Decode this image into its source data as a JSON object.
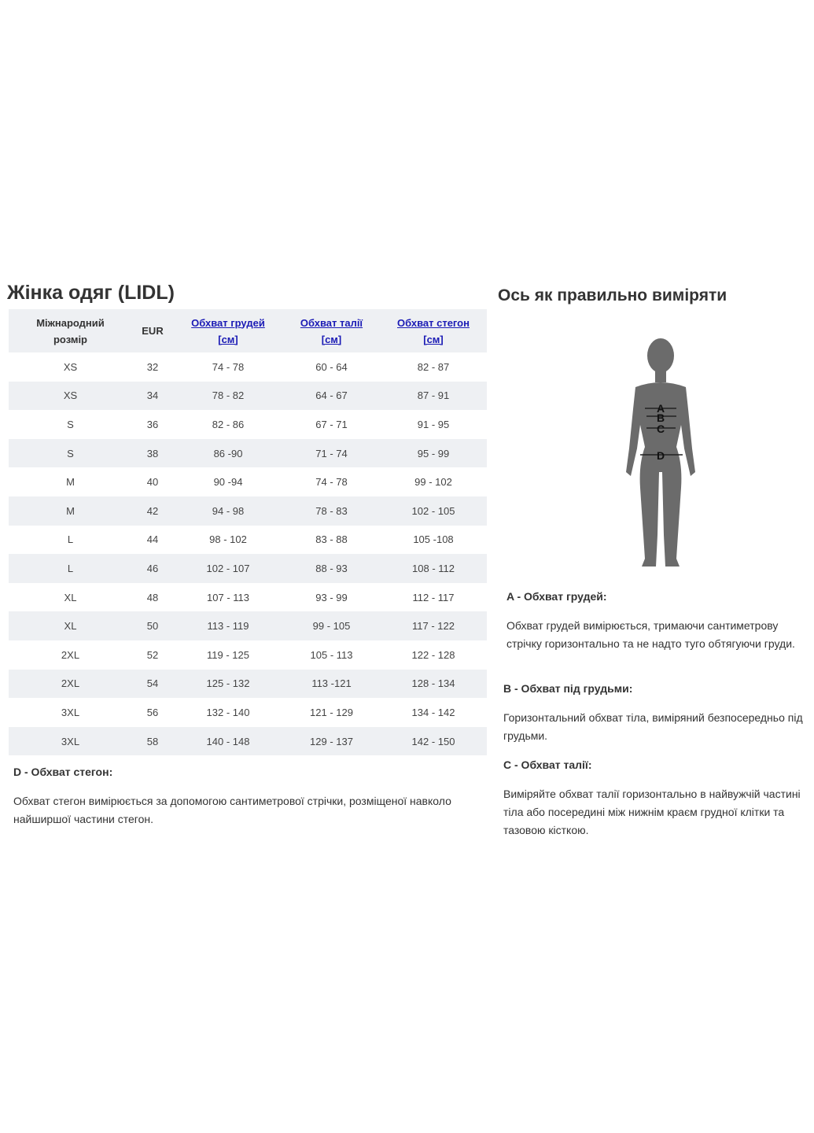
{
  "left": {
    "title": "Жінка одяг (LIDL)",
    "headers": [
      {
        "line1": "Міжнародний",
        "line2": "розмір",
        "link": false
      },
      {
        "line1": "EUR",
        "line2": "",
        "link": false
      },
      {
        "line1": "Обхват грудей",
        "line2": "[см]",
        "link": true
      },
      {
        "line1": "Обхват талії",
        "line2": "[см]",
        "link": true
      },
      {
        "line1": "Обхват стегон",
        "line2": "[см]",
        "link": true
      }
    ],
    "rows": [
      [
        "XS",
        "32",
        "74 - 78",
        "60 - 64",
        "82 - 87"
      ],
      [
        "XS",
        "34",
        "78 - 82",
        "64 - 67",
        "87 - 91"
      ],
      [
        "S",
        "36",
        "82 - 86",
        "67 - 71",
        "91 - 95"
      ],
      [
        "S",
        "38",
        "86 -90",
        "71 - 74",
        "95 - 99"
      ],
      [
        "M",
        "40",
        "90 -94",
        "74 - 78",
        "99 - 102"
      ],
      [
        "M",
        "42",
        "94 - 98",
        "78 - 83",
        "102 - 105"
      ],
      [
        "L",
        "44",
        "98 - 102",
        "83 - 88",
        "105 -108"
      ],
      [
        "L",
        "46",
        "102 - 107",
        "88 - 93",
        "108 - 112"
      ],
      [
        "XL",
        "48",
        "107 - 113",
        "93 - 99",
        "112 - 117"
      ],
      [
        "XL",
        "50",
        "113 - 119",
        "99 - 105",
        "117 - 122"
      ],
      [
        "2XL",
        "52",
        "119 - 125",
        "105 - 113",
        "122 - 128"
      ],
      [
        "2XL",
        "54",
        "125 - 132",
        "113 -121",
        "128 - 134"
      ],
      [
        "3XL",
        "56",
        "132 - 140",
        "121 - 129",
        "134 - 142"
      ],
      [
        "3XL",
        "58",
        "140 - 148",
        "129 - 137",
        "142 - 150"
      ]
    ],
    "d_title": "D - Обхват стегон:",
    "d_text": "Обхват стегон вимірюється за допомогою сантиметрової стрічки, розміщеної навколо найширшої частини стегон."
  },
  "right": {
    "title": "Ось як правильно виміряти",
    "figure_labels": [
      "A",
      "B",
      "C",
      "D"
    ],
    "a_title": "A - Обхват грудей:",
    "a_text": "Обхват грудей вимірюється, тримаючи сантиметрову стрічку горизонтально та не надто туго обтягуючи груди.",
    "b_title": "B - Обхват під грудьми:",
    "b_text": "Горизонтальний обхват тіла, виміряний безпосередньо під грудьми.",
    "c_title": "C - Обхват талії:",
    "c_text": "Виміряйте обхват талії горизонтально в найвужчій частині тіла або посередині між нижнім краєм грудної клітки та тазовою кісткою."
  },
  "colors": {
    "stripe": "#eef0f3",
    "link": "#1b1bb5",
    "figure": "#6b6b6b"
  }
}
